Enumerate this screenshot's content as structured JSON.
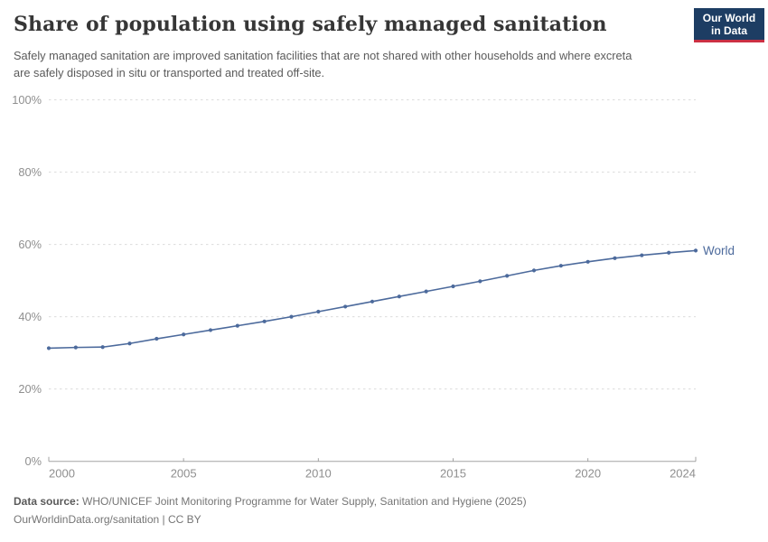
{
  "header": {
    "title": "Share of population using safely managed sanitation",
    "subtitle": "Safely managed sanitation are improved sanitation facilities that are not shared with other households and where excreta are safely disposed in situ or transported and treated off-site.",
    "logo": {
      "line1": "Our World",
      "line2": "in Data"
    }
  },
  "colors": {
    "line": "#4C6A9C",
    "grid": "#dcdcdc",
    "axis": "#a3a3a3",
    "tick_label": "#8f8f8f",
    "logo_bg": "#1d3d63",
    "logo_accent": "#cb3043"
  },
  "chart_data": {
    "type": "line",
    "title": "Share of population using safely managed sanitation",
    "xlabel": "",
    "ylabel": "",
    "xlim": [
      2000,
      2024
    ],
    "ylim": [
      0,
      100
    ],
    "x_ticks": [
      2000,
      2005,
      2010,
      2015,
      2020,
      2024
    ],
    "y_ticks": [
      0,
      20,
      40,
      60,
      80,
      100
    ],
    "y_tick_suffix": "%",
    "grid": "horizontal-dashed",
    "legend_position": "end-of-line-label",
    "series": [
      {
        "name": "World",
        "color": "#4C6A9C",
        "x": [
          2000,
          2001,
          2002,
          2003,
          2004,
          2005,
          2006,
          2007,
          2008,
          2009,
          2010,
          2011,
          2012,
          2013,
          2014,
          2015,
          2016,
          2017,
          2018,
          2019,
          2020,
          2021,
          2022,
          2023,
          2024
        ],
        "values": [
          31.3,
          31.5,
          31.6,
          32.6,
          33.9,
          35.1,
          36.3,
          37.5,
          38.7,
          40.0,
          41.4,
          42.8,
          44.2,
          45.6,
          47.0,
          48.4,
          49.8,
          51.3,
          52.8,
          54.1,
          55.2,
          56.2,
          57.0,
          57.7,
          58.3
        ]
      }
    ]
  },
  "footer": {
    "source_label": "Data source:",
    "source_text": " WHO/UNICEF Joint Monitoring Programme for Water Supply, Sanitation and Hygiene (2025)",
    "license_text": "OurWorldinData.org/sanitation | CC BY"
  }
}
